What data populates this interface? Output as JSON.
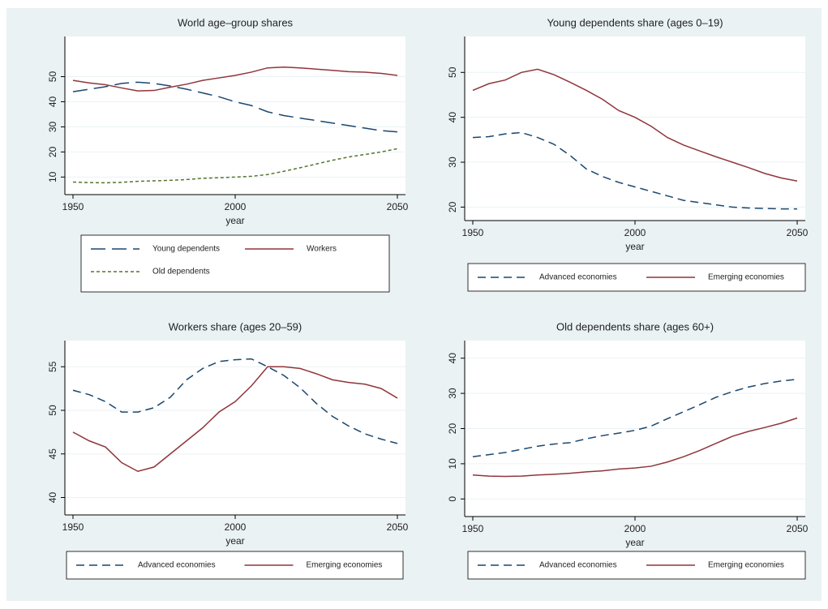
{
  "chart_data": [
    {
      "type": "line",
      "title": "World age–group shares",
      "x_label": "year",
      "x": [
        1950,
        1955,
        1960,
        1965,
        1970,
        1975,
        1980,
        1985,
        1990,
        1995,
        2000,
        2005,
        2010,
        2015,
        2020,
        2025,
        2030,
        2035,
        2040,
        2045,
        2050
      ],
      "series": [
        {
          "name": "Young dependents",
          "color": "#1a476f",
          "line_style": "longdash",
          "values": [
            44,
            45,
            46,
            47.3,
            47.8,
            47.3,
            46.3,
            45,
            43.5,
            42,
            40,
            38.5,
            36,
            34.5,
            33.5,
            32.5,
            31.5,
            30.5,
            29.5,
            28.5,
            28
          ]
        },
        {
          "name": "Workers",
          "color": "#90353b",
          "line_style": "solid",
          "values": [
            48.5,
            47.5,
            46.8,
            45.5,
            44.3,
            44.5,
            45.8,
            47,
            48.5,
            49.5,
            50.5,
            51.8,
            53.5,
            53.8,
            53.5,
            53,
            52.5,
            52,
            51.8,
            51.3,
            50.5
          ]
        },
        {
          "name": "Old dependents",
          "color": "#55752f",
          "line_style": "shortdash",
          "values": [
            8,
            7.8,
            7.7,
            7.9,
            8.3,
            8.5,
            8.7,
            9,
            9.5,
            9.7,
            10,
            10.3,
            11,
            12.3,
            13.7,
            15.2,
            16.7,
            18,
            19,
            20,
            21.3
          ]
        }
      ],
      "xlim": [
        1947.5,
        2052.5
      ],
      "xticks": [
        1950,
        2000,
        2050
      ],
      "ylim": [
        3,
        66
      ],
      "yticks": [
        10,
        20,
        30,
        40,
        50
      ],
      "grid": true
    },
    {
      "type": "line",
      "title": "Young dependents share (ages 0–19)",
      "x_label": "year",
      "x": [
        1950,
        1955,
        1960,
        1965,
        1970,
        1975,
        1980,
        1985,
        1990,
        1995,
        2000,
        2005,
        2010,
        2015,
        2020,
        2025,
        2030,
        2035,
        2040,
        2045,
        2050
      ],
      "series": [
        {
          "name": "Advanced economies",
          "color": "#1a476f",
          "line_style": "dash",
          "values": [
            35.5,
            35.7,
            36.3,
            36.6,
            35.5,
            34,
            31.5,
            28.5,
            26.8,
            25.5,
            24.5,
            23.5,
            22.5,
            21.5,
            21,
            20.5,
            20,
            19.8,
            19.7,
            19.6,
            19.6
          ]
        },
        {
          "name": "Emerging economies",
          "color": "#90353b",
          "line_style": "solid",
          "values": [
            46,
            47.5,
            48.3,
            50,
            50.7,
            49.5,
            47.8,
            46,
            44,
            41.5,
            40,
            38,
            35.5,
            33.8,
            32.5,
            31.2,
            30,
            28.8,
            27.5,
            26.5,
            25.8
          ]
        }
      ],
      "xlim": [
        1947.5,
        2052.5
      ],
      "xticks": [
        1950,
        2000,
        2050
      ],
      "ylim": [
        17,
        58
      ],
      "yticks": [
        20,
        30,
        40,
        50
      ],
      "grid": true
    },
    {
      "type": "line",
      "title": "Workers share (ages 20–59)",
      "x_label": "year",
      "x": [
        1950,
        1955,
        1960,
        1965,
        1970,
        1975,
        1980,
        1985,
        1990,
        1995,
        2000,
        2005,
        2010,
        2015,
        2020,
        2025,
        2030,
        2035,
        2040,
        2045,
        2050
      ],
      "series": [
        {
          "name": "Advanced economies",
          "color": "#1a476f",
          "line_style": "dash",
          "values": [
            52.3,
            51.8,
            51,
            49.8,
            49.8,
            50.3,
            51.5,
            53.5,
            54.8,
            55.6,
            55.8,
            55.9,
            55,
            54,
            52.6,
            50.8,
            49.3,
            48.2,
            47.3,
            46.7,
            46.2
          ]
        },
        {
          "name": "Emerging economies",
          "color": "#90353b",
          "line_style": "solid",
          "values": [
            47.5,
            46.5,
            45.8,
            44,
            43,
            43.5,
            45,
            46.5,
            48,
            49.8,
            51,
            52.8,
            55,
            55,
            54.8,
            54.2,
            53.5,
            53.2,
            53,
            52.5,
            51.4
          ]
        }
      ],
      "xlim": [
        1947.5,
        2052.5
      ],
      "xticks": [
        1950,
        2000,
        2050
      ],
      "ylim": [
        38,
        58
      ],
      "yticks": [
        40,
        45,
        50,
        55
      ],
      "grid": true
    },
    {
      "type": "line",
      "title": "Old dependents share (ages 60+)",
      "x_label": "year",
      "x": [
        1950,
        1955,
        1960,
        1965,
        1970,
        1975,
        1980,
        1985,
        1990,
        1995,
        2000,
        2005,
        2010,
        2015,
        2020,
        2025,
        2030,
        2035,
        2040,
        2045,
        2050
      ],
      "series": [
        {
          "name": "Advanced economies",
          "color": "#1a476f",
          "line_style": "dash",
          "values": [
            12,
            12.6,
            13.2,
            14.1,
            15,
            15.6,
            16,
            17.1,
            18,
            18.7,
            19.5,
            20.7,
            22.8,
            24.8,
            26.8,
            28.9,
            30.5,
            31.8,
            32.8,
            33.5,
            34
          ]
        },
        {
          "name": "Emerging economies",
          "color": "#90353b",
          "line_style": "solid",
          "values": [
            6.8,
            6.5,
            6.4,
            6.5,
            6.8,
            7,
            7.3,
            7.7,
            8,
            8.5,
            8.8,
            9.3,
            10.5,
            12,
            13.8,
            15.8,
            17.8,
            19.2,
            20.3,
            21.5,
            23
          ]
        }
      ],
      "xlim": [
        1947.5,
        2052.5
      ],
      "xticks": [
        1950,
        2000,
        2050
      ],
      "ylim": [
        -5,
        45
      ],
      "yticks": [
        0,
        10,
        20,
        30,
        40
      ],
      "grid": true
    }
  ]
}
